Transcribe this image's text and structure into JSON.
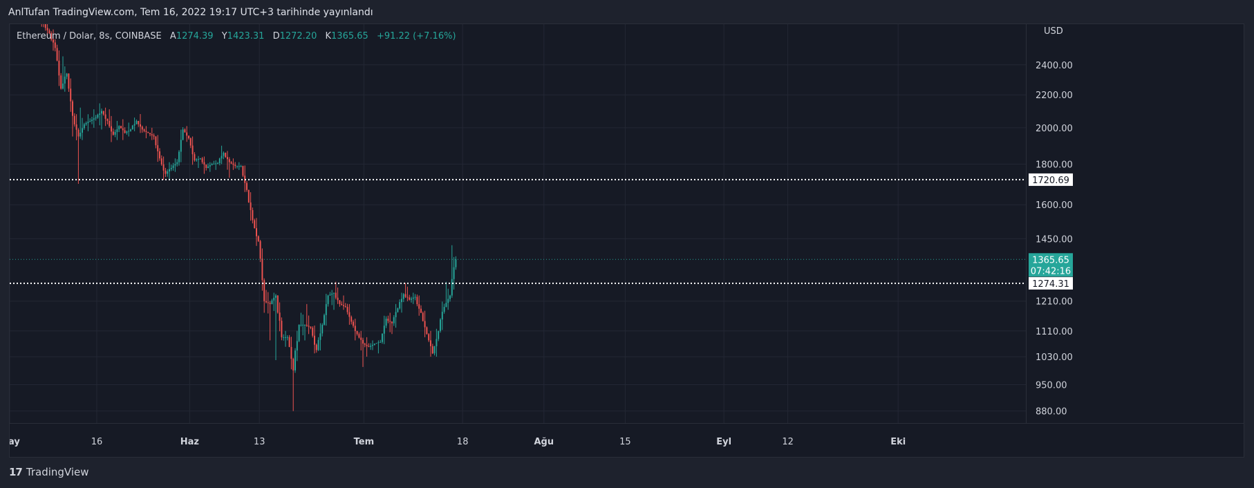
{
  "header": {
    "publish_text": "AnlTufan TradingView.com, Tem 16, 2022 19:17 UTC+3 tarihinde yayınlandı"
  },
  "legend": {
    "symbol": "Ethereum / Dolar, 8s, COINBASE",
    "open_label": "A",
    "open": "1274.39",
    "high_label": "Y",
    "high": "1423.31",
    "low_label": "D",
    "low": "1272.20",
    "close_label": "K",
    "close": "1365.65",
    "change": "+91.22 (+7.16%)"
  },
  "brand": {
    "logo": "17",
    "name": "TradingView"
  },
  "colors": {
    "up": "#26a69a",
    "down": "#ef5350",
    "background": "#161a25",
    "grid": "#232734",
    "dotted_line": "#ffffff",
    "last_price_bg": "#26a69a"
  },
  "chart_data": {
    "type": "candlestick",
    "symbol": "Ethereum / Dolar",
    "interval": "8s",
    "exchange": "COINBASE",
    "currency": "USD",
    "y_axis_scale": "log",
    "ylim": [
      850,
      2700
    ],
    "y_ticks": [
      880,
      950,
      1030,
      1110,
      1210,
      1450,
      1600,
      1800,
      2000,
      2200,
      2400
    ],
    "y_tick_labels": [
      "880.00",
      "950.00",
      "1030.00",
      "1110.00",
      "1210.00",
      "1450.00",
      "1600.00",
      "1800.00",
      "2000.00",
      "2200.00",
      "2400.00"
    ],
    "x_axis": {
      "start": "2022-05-01",
      "end": "2022-10-23",
      "ticks": [
        {
          "date": "2022-05-01",
          "label": "May"
        },
        {
          "date": "2022-05-16",
          "label": "16"
        },
        {
          "date": "2022-06-01",
          "label": "Haz"
        },
        {
          "date": "2022-06-13",
          "label": "13"
        },
        {
          "date": "2022-07-01",
          "label": "Tem"
        },
        {
          "date": "2022-07-18",
          "label": "18"
        },
        {
          "date": "2022-08-01",
          "label": "Ağu"
        },
        {
          "date": "2022-08-15",
          "label": "15"
        },
        {
          "date": "2022-09-01",
          "label": "Eyl"
        },
        {
          "date": "2022-09-12",
          "label": "12"
        },
        {
          "date": "2022-10-01",
          "label": "Eki"
        }
      ]
    },
    "grid": true,
    "horizontal_lines": [
      {
        "value": 1720.69,
        "label": "1720.69",
        "style": "dotted"
      },
      {
        "value": 1274.31,
        "label": "1274.31",
        "style": "dotted"
      }
    ],
    "last_price": {
      "value": 1365.65,
      "label": "1365.65",
      "countdown": "07:42:16"
    },
    "daily_ohlc": [
      {
        "date": "2022-05-06",
        "o": 2760,
        "h": 2780,
        "l": 2680,
        "c": 2700
      },
      {
        "date": "2022-05-07",
        "o": 2700,
        "h": 2720,
        "l": 2600,
        "c": 2630
      },
      {
        "date": "2022-05-08",
        "o": 2630,
        "h": 2660,
        "l": 2500,
        "c": 2520
      },
      {
        "date": "2022-05-09",
        "o": 2520,
        "h": 2540,
        "l": 2200,
        "c": 2240
      },
      {
        "date": "2022-05-10",
        "o": 2240,
        "h": 2460,
        "l": 2220,
        "c": 2340
      },
      {
        "date": "2022-05-11",
        "o": 2340,
        "h": 2360,
        "l": 1950,
        "c": 2070
      },
      {
        "date": "2022-05-12",
        "o": 2070,
        "h": 2100,
        "l": 1700,
        "c": 1950
      },
      {
        "date": "2022-05-13",
        "o": 1950,
        "h": 2120,
        "l": 1930,
        "c": 2020
      },
      {
        "date": "2022-05-14",
        "o": 2020,
        "h": 2080,
        "l": 1980,
        "c": 2040
      },
      {
        "date": "2022-05-15",
        "o": 2040,
        "h": 2110,
        "l": 2000,
        "c": 2060
      },
      {
        "date": "2022-05-16",
        "o": 2060,
        "h": 2150,
        "l": 1990,
        "c": 2100
      },
      {
        "date": "2022-05-17",
        "o": 2100,
        "h": 2120,
        "l": 2010,
        "c": 2040
      },
      {
        "date": "2022-05-18",
        "o": 2040,
        "h": 2110,
        "l": 1910,
        "c": 1960
      },
      {
        "date": "2022-05-19",
        "o": 1960,
        "h": 2040,
        "l": 1930,
        "c": 2010
      },
      {
        "date": "2022-05-20",
        "o": 2010,
        "h": 2050,
        "l": 1930,
        "c": 1970
      },
      {
        "date": "2022-05-21",
        "o": 1970,
        "h": 2030,
        "l": 1950,
        "c": 1990
      },
      {
        "date": "2022-05-22",
        "o": 1990,
        "h": 2060,
        "l": 1980,
        "c": 2040
      },
      {
        "date": "2022-05-23",
        "o": 2040,
        "h": 2090,
        "l": 1970,
        "c": 1990
      },
      {
        "date": "2022-05-24",
        "o": 1990,
        "h": 2010,
        "l": 1940,
        "c": 1970
      },
      {
        "date": "2022-05-25",
        "o": 1970,
        "h": 2000,
        "l": 1930,
        "c": 1950
      },
      {
        "date": "2022-05-26",
        "o": 1950,
        "h": 1960,
        "l": 1780,
        "c": 1830
      },
      {
        "date": "2022-05-27",
        "o": 1830,
        "h": 1840,
        "l": 1720,
        "c": 1750
      },
      {
        "date": "2022-05-28",
        "o": 1750,
        "h": 1810,
        "l": 1720,
        "c": 1780
      },
      {
        "date": "2022-05-29",
        "o": 1780,
        "h": 1830,
        "l": 1760,
        "c": 1810
      },
      {
        "date": "2022-05-30",
        "o": 1810,
        "h": 2020,
        "l": 1800,
        "c": 1990
      },
      {
        "date": "2022-05-31",
        "o": 1990,
        "h": 2010,
        "l": 1920,
        "c": 1940
      },
      {
        "date": "2022-06-01",
        "o": 1940,
        "h": 1950,
        "l": 1780,
        "c": 1820
      },
      {
        "date": "2022-06-02",
        "o": 1820,
        "h": 1840,
        "l": 1780,
        "c": 1830
      },
      {
        "date": "2022-06-03",
        "o": 1830,
        "h": 1840,
        "l": 1750,
        "c": 1780
      },
      {
        "date": "2022-06-04",
        "o": 1780,
        "h": 1810,
        "l": 1760,
        "c": 1800
      },
      {
        "date": "2022-06-05",
        "o": 1800,
        "h": 1820,
        "l": 1770,
        "c": 1805
      },
      {
        "date": "2022-06-06",
        "o": 1805,
        "h": 1910,
        "l": 1800,
        "c": 1860
      },
      {
        "date": "2022-06-07",
        "o": 1860,
        "h": 1870,
        "l": 1730,
        "c": 1810
      },
      {
        "date": "2022-06-08",
        "o": 1810,
        "h": 1830,
        "l": 1770,
        "c": 1790
      },
      {
        "date": "2022-06-09",
        "o": 1790,
        "h": 1810,
        "l": 1770,
        "c": 1790
      },
      {
        "date": "2022-06-10",
        "o": 1790,
        "h": 1800,
        "l": 1660,
        "c": 1670
      },
      {
        "date": "2022-06-11",
        "o": 1670,
        "h": 1680,
        "l": 1500,
        "c": 1530
      },
      {
        "date": "2022-06-12",
        "o": 1530,
        "h": 1540,
        "l": 1420,
        "c": 1440
      },
      {
        "date": "2022-06-13",
        "o": 1440,
        "h": 1450,
        "l": 1170,
        "c": 1210
      },
      {
        "date": "2022-06-14",
        "o": 1210,
        "h": 1250,
        "l": 1080,
        "c": 1200
      },
      {
        "date": "2022-06-15",
        "o": 1200,
        "h": 1240,
        "l": 1020,
        "c": 1230
      },
      {
        "date": "2022-06-16",
        "o": 1230,
        "h": 1250,
        "l": 1070,
        "c": 1090
      },
      {
        "date": "2022-06-17",
        "o": 1090,
        "h": 1110,
        "l": 1060,
        "c": 1090
      },
      {
        "date": "2022-06-18",
        "o": 1090,
        "h": 1100,
        "l": 880,
        "c": 990
      },
      {
        "date": "2022-06-19",
        "o": 990,
        "h": 1150,
        "l": 970,
        "c": 1130
      },
      {
        "date": "2022-06-20",
        "o": 1130,
        "h": 1170,
        "l": 1080,
        "c": 1130
      },
      {
        "date": "2022-06-21",
        "o": 1130,
        "h": 1200,
        "l": 1100,
        "c": 1120
      },
      {
        "date": "2022-06-22",
        "o": 1120,
        "h": 1130,
        "l": 1040,
        "c": 1050
      },
      {
        "date": "2022-06-23",
        "o": 1050,
        "h": 1140,
        "l": 1040,
        "c": 1130
      },
      {
        "date": "2022-06-24",
        "o": 1130,
        "h": 1240,
        "l": 1120,
        "c": 1230
      },
      {
        "date": "2022-06-25",
        "o": 1230,
        "h": 1250,
        "l": 1180,
        "c": 1240
      },
      {
        "date": "2022-06-26",
        "o": 1240,
        "h": 1280,
        "l": 1200,
        "c": 1200
      },
      {
        "date": "2022-06-27",
        "o": 1200,
        "h": 1230,
        "l": 1180,
        "c": 1190
      },
      {
        "date": "2022-06-28",
        "o": 1190,
        "h": 1200,
        "l": 1130,
        "c": 1140
      },
      {
        "date": "2022-06-29",
        "o": 1140,
        "h": 1150,
        "l": 1080,
        "c": 1100
      },
      {
        "date": "2022-06-30",
        "o": 1100,
        "h": 1110,
        "l": 1000,
        "c": 1070
      },
      {
        "date": "2022-07-01",
        "o": 1070,
        "h": 1090,
        "l": 1030,
        "c": 1060
      },
      {
        "date": "2022-07-02",
        "o": 1060,
        "h": 1080,
        "l": 1050,
        "c": 1070
      },
      {
        "date": "2022-07-03",
        "o": 1070,
        "h": 1080,
        "l": 1040,
        "c": 1075
      },
      {
        "date": "2022-07-04",
        "o": 1075,
        "h": 1160,
        "l": 1060,
        "c": 1150
      },
      {
        "date": "2022-07-05",
        "o": 1150,
        "h": 1170,
        "l": 1100,
        "c": 1135
      },
      {
        "date": "2022-07-06",
        "o": 1135,
        "h": 1200,
        "l": 1120,
        "c": 1185
      },
      {
        "date": "2022-07-07",
        "o": 1185,
        "h": 1240,
        "l": 1170,
        "c": 1235
      },
      {
        "date": "2022-07-08",
        "o": 1235,
        "h": 1275,
        "l": 1210,
        "c": 1215
      },
      {
        "date": "2022-07-09",
        "o": 1215,
        "h": 1240,
        "l": 1200,
        "c": 1225
      },
      {
        "date": "2022-07-10",
        "o": 1225,
        "h": 1230,
        "l": 1160,
        "c": 1170
      },
      {
        "date": "2022-07-11",
        "o": 1170,
        "h": 1180,
        "l": 1090,
        "c": 1100
      },
      {
        "date": "2022-07-12",
        "o": 1100,
        "h": 1110,
        "l": 1030,
        "c": 1040
      },
      {
        "date": "2022-07-13",
        "o": 1040,
        "h": 1120,
        "l": 1010,
        "c": 1110
      },
      {
        "date": "2022-07-14",
        "o": 1110,
        "h": 1210,
        "l": 1090,
        "c": 1190
      },
      {
        "date": "2022-07-15",
        "o": 1190,
        "h": 1280,
        "l": 1180,
        "c": 1230
      },
      {
        "date": "2022-07-16",
        "o": 1230,
        "h": 1423,
        "l": 1220,
        "c": 1365.65
      }
    ]
  }
}
